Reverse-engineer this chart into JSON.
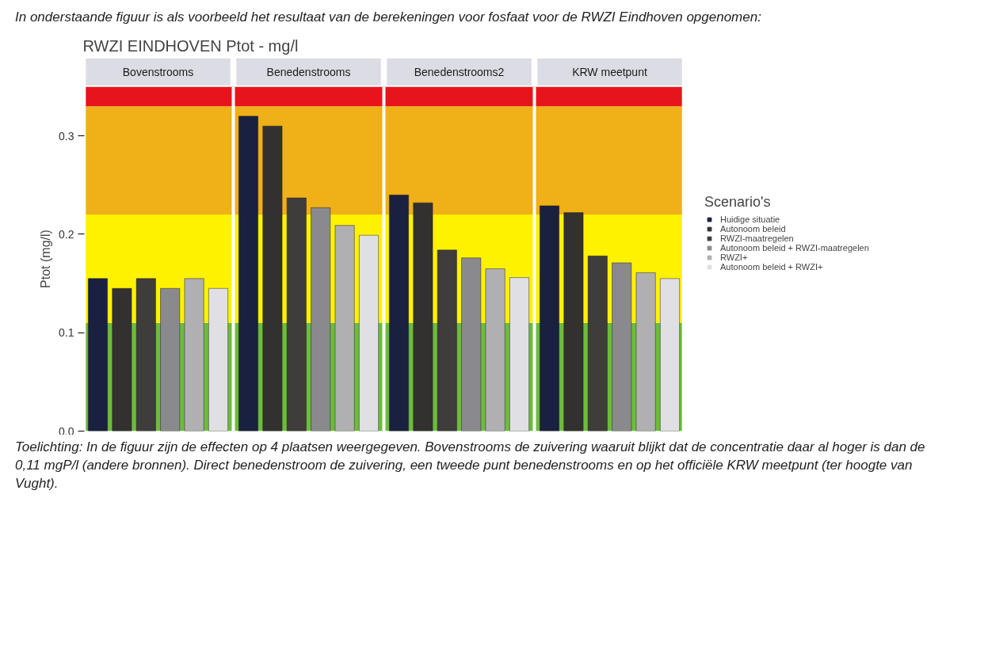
{
  "chart_data": {
    "type": "bar",
    "title": "RWZI EINDHOVEN Ptot - mg/l",
    "ylabel": "Ptot (mg/l)",
    "legend_title": "Scenario's",
    "legend": "right",
    "tick_labels": "y",
    "categories": [
      "Bovenstrooms",
      "Benedenstrooms",
      "Benedenstrooms2",
      "KRW meetpunt"
    ],
    "series": [
      {
        "name": "Huidige situatie",
        "color": "#1a2040",
        "values": [
          0.155,
          0.32,
          0.24,
          0.229
        ]
      },
      {
        "name": "Autonoom beleid",
        "color": "#333030",
        "values": [
          0.145,
          0.31,
          0.232,
          0.222
        ]
      },
      {
        "name": "RWZI-maatregelen",
        "color": "#3f3c3c",
        "values": [
          0.155,
          0.237,
          0.184,
          0.178
        ]
      },
      {
        "name": "Autonoom beleid + RWZI-maatregelen",
        "color": "#8a8a8e",
        "values": [
          0.145,
          0.227,
          0.176,
          0.171
        ]
      },
      {
        "name": "RWZI+",
        "color": "#b0b0b2",
        "values": [
          0.155,
          0.209,
          0.165,
          0.161
        ]
      },
      {
        "name": "Autonoom beleid + RWZI+",
        "color": "#e0e0e4",
        "values": [
          0.145,
          0.199,
          0.156,
          0.155
        ]
      }
    ],
    "ylim": [
      0,
      0.35
    ],
    "yticks": [
      {
        "value": 0,
        "label": "0.0"
      },
      0.1,
      0.2,
      0.3
    ],
    "bands": [
      {
        "axis": "y",
        "from": 0,
        "to": 0.11,
        "color": "#6cbd3a"
      },
      {
        "axis": "y",
        "from": 0.11,
        "to": 0.22,
        "color": "#fff200"
      },
      {
        "axis": "y",
        "from": 0.22,
        "to": 0.33,
        "color": "#f0b017"
      },
      {
        "axis": "y",
        "from": 0.33,
        "to": 0.35,
        "color": "#e8141c"
      }
    ],
    "annotations": [
      "In onderstaande figuur is als voorbeeld het resultaat van de berekeningen voor fosfaat voor de RWZI Eindhoven opgenomen:",
      "Toelichting: In de figuur zijn de effecten op 4 plaatsen weergegeven. Bovenstrooms de zuivering waaruit blijkt dat de concentratie daar al hoger is dan de 0,11 mgP/l (andere bronnen). Direct benedenstroom de zuivering, een tweede punt benedenstrooms en op het officiële KRW meetpunt (ter hoogte van Vught)."
    ]
  }
}
